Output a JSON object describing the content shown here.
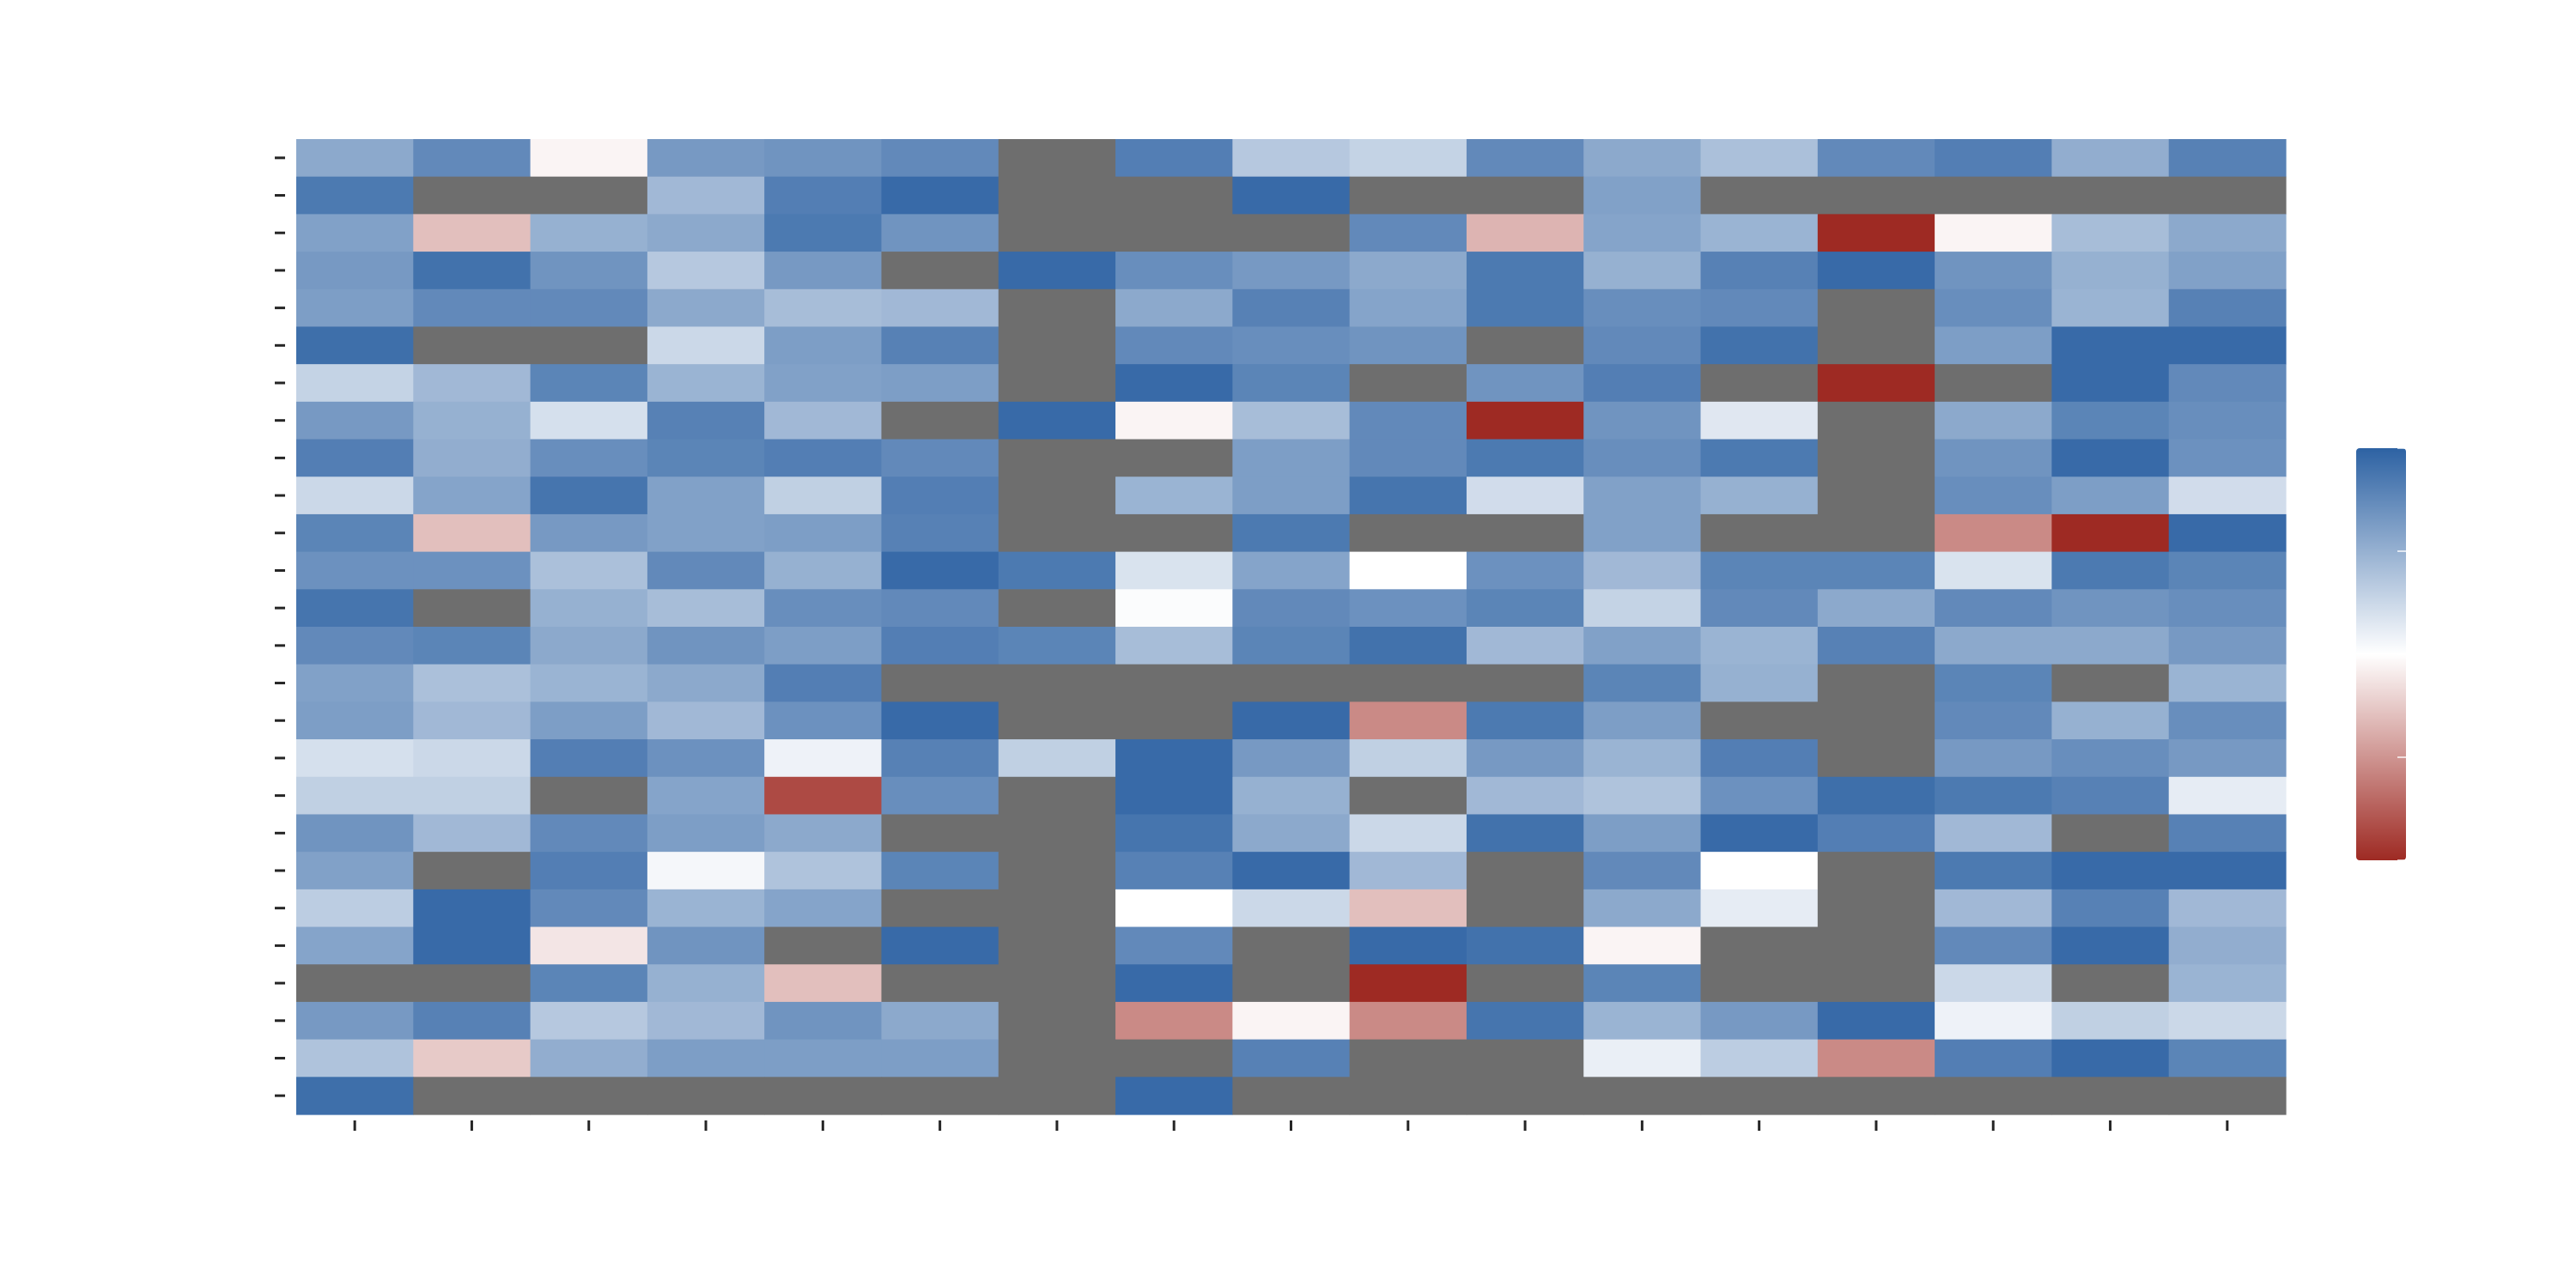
{
  "chart_data": {
    "type": "heatmap",
    "title": "",
    "xlabel": "",
    "ylabel": "",
    "n_rows": 26,
    "n_cols": 17,
    "x_tick_labels": [],
    "y_tick_labels": [],
    "missing_color": "#6e6e6e",
    "colormap": {
      "low": "#9e2a23",
      "mid": "#ffffff",
      "high": "#2d62a3"
    },
    "colorbar": {
      "vmin": -1,
      "vmax": 1,
      "ticks": [
        -1,
        -0.5,
        0,
        0.5,
        1
      ],
      "tick_labels": []
    },
    "grid": false,
    "values": [
      [
        0.55,
        0.75,
        -0.05,
        0.65,
        0.68,
        0.75,
        null,
        0.82,
        0.35,
        0.28,
        0.75,
        0.55,
        0.4,
        0.75,
        0.82,
        0.52,
        0.8
      ],
      [
        0.85,
        null,
        null,
        0.45,
        0.82,
        0.95,
        null,
        null,
        0.95,
        null,
        null,
        0.6,
        null,
        null,
        null,
        null,
        null
      ],
      [
        0.6,
        -0.3,
        0.5,
        0.55,
        0.85,
        0.68,
        null,
        null,
        null,
        0.75,
        -0.35,
        0.58,
        0.48,
        -1.0,
        -0.05,
        0.42,
        0.55
      ],
      [
        0.65,
        0.9,
        0.68,
        0.35,
        0.65,
        null,
        0.95,
        0.72,
        0.65,
        0.55,
        0.85,
        0.5,
        0.8,
        0.95,
        0.68,
        0.5,
        0.6
      ],
      [
        0.62,
        0.75,
        0.75,
        0.55,
        0.42,
        0.45,
        null,
        0.55,
        0.8,
        0.58,
        0.85,
        0.72,
        0.75,
        null,
        0.72,
        0.48,
        0.8
      ],
      [
        0.92,
        null,
        null,
        0.25,
        0.62,
        0.8,
        null,
        0.75,
        0.72,
        0.68,
        null,
        0.75,
        0.9,
        null,
        0.62,
        0.95,
        0.95
      ],
      [
        0.28,
        0.45,
        0.78,
        0.48,
        0.6,
        0.62,
        null,
        0.95,
        0.78,
        null,
        0.68,
        0.82,
        null,
        -1.0,
        null,
        0.95,
        0.75
      ],
      [
        0.65,
        0.5,
        0.2,
        0.8,
        0.45,
        null,
        0.95,
        -0.05,
        0.42,
        0.75,
        -1.0,
        0.68,
        0.15,
        null,
        0.55,
        0.78,
        0.72
      ],
      [
        0.82,
        0.52,
        0.72,
        0.78,
        0.82,
        0.75,
        null,
        null,
        0.62,
        0.75,
        0.85,
        0.72,
        0.85,
        null,
        0.68,
        0.95,
        0.7
      ],
      [
        0.25,
        0.58,
        0.88,
        0.6,
        0.3,
        0.82,
        null,
        0.48,
        0.62,
        0.88,
        0.22,
        0.6,
        0.5,
        null,
        0.72,
        0.62,
        0.22
      ],
      [
        0.78,
        -0.3,
        0.65,
        0.6,
        0.62,
        0.8,
        null,
        null,
        0.85,
        null,
        null,
        0.6,
        null,
        null,
        -0.55,
        -1.0,
        0.95
      ],
      [
        0.7,
        0.7,
        0.4,
        0.75,
        0.5,
        0.95,
        0.85,
        0.18,
        0.58,
        0.0,
        0.7,
        0.45,
        0.78,
        0.78,
        0.18,
        0.85,
        0.78
      ],
      [
        0.88,
        null,
        0.5,
        0.42,
        0.72,
        0.75,
        null,
        0.02,
        0.75,
        0.7,
        0.78,
        0.28,
        0.75,
        0.55,
        0.75,
        0.68,
        0.72
      ],
      [
        0.75,
        0.78,
        0.55,
        0.68,
        0.62,
        0.82,
        0.78,
        0.42,
        0.78,
        0.9,
        0.45,
        0.6,
        0.48,
        0.8,
        0.55,
        0.55,
        0.65
      ],
      [
        0.6,
        0.4,
        0.48,
        0.55,
        0.82,
        null,
        null,
        null,
        null,
        null,
        null,
        0.78,
        0.5,
        null,
        0.78,
        null,
        0.48
      ],
      [
        0.62,
        0.45,
        0.62,
        0.45,
        0.7,
        0.95,
        null,
        null,
        0.95,
        -0.55,
        0.85,
        0.62,
        null,
        null,
        0.75,
        0.5,
        0.72
      ],
      [
        0.2,
        0.25,
        0.82,
        0.7,
        0.08,
        0.8,
        0.3,
        0.95,
        0.65,
        0.3,
        0.65,
        0.48,
        0.82,
        null,
        0.65,
        0.72,
        0.65
      ],
      [
        0.3,
        0.3,
        null,
        0.58,
        -0.85,
        0.72,
        null,
        0.95,
        0.5,
        null,
        0.45,
        0.38,
        0.7,
        0.92,
        0.85,
        0.8,
        0.12
      ],
      [
        0.68,
        0.45,
        0.75,
        0.62,
        0.55,
        null,
        null,
        0.88,
        0.55,
        0.25,
        0.9,
        0.62,
        0.95,
        0.82,
        0.45,
        null,
        0.8
      ],
      [
        0.6,
        null,
        0.82,
        0.05,
        0.38,
        0.78,
        null,
        0.8,
        0.95,
        0.45,
        null,
        0.75,
        0.0,
        null,
        0.85,
        0.95,
        0.95
      ],
      [
        0.32,
        0.95,
        0.75,
        0.48,
        0.58,
        null,
        null,
        0.0,
        0.25,
        -0.3,
        null,
        0.55,
        0.12,
        null,
        0.45,
        0.8,
        0.45
      ],
      [
        0.58,
        0.95,
        -0.12,
        0.68,
        null,
        0.95,
        null,
        0.75,
        null,
        0.95,
        0.9,
        -0.05,
        null,
        null,
        0.75,
        0.95,
        0.52
      ],
      [
        null,
        null,
        0.78,
        0.5,
        -0.3,
        null,
        null,
        0.95,
        null,
        -1.0,
        null,
        0.78,
        null,
        null,
        0.25,
        null,
        0.48
      ],
      [
        0.65,
        0.8,
        0.35,
        0.45,
        0.68,
        0.55,
        null,
        -0.55,
        -0.05,
        -0.55,
        0.88,
        0.48,
        0.65,
        0.95,
        0.08,
        0.3,
        0.25
      ],
      [
        0.38,
        -0.25,
        0.52,
        0.62,
        0.62,
        0.62,
        null,
        null,
        0.8,
        null,
        null,
        0.1,
        0.32,
        -0.55,
        0.82,
        0.95,
        0.78
      ],
      [
        0.92,
        null,
        null,
        null,
        null,
        null,
        null,
        0.95,
        null,
        null,
        null,
        null,
        null,
        null,
        null,
        null,
        null
      ]
    ]
  }
}
